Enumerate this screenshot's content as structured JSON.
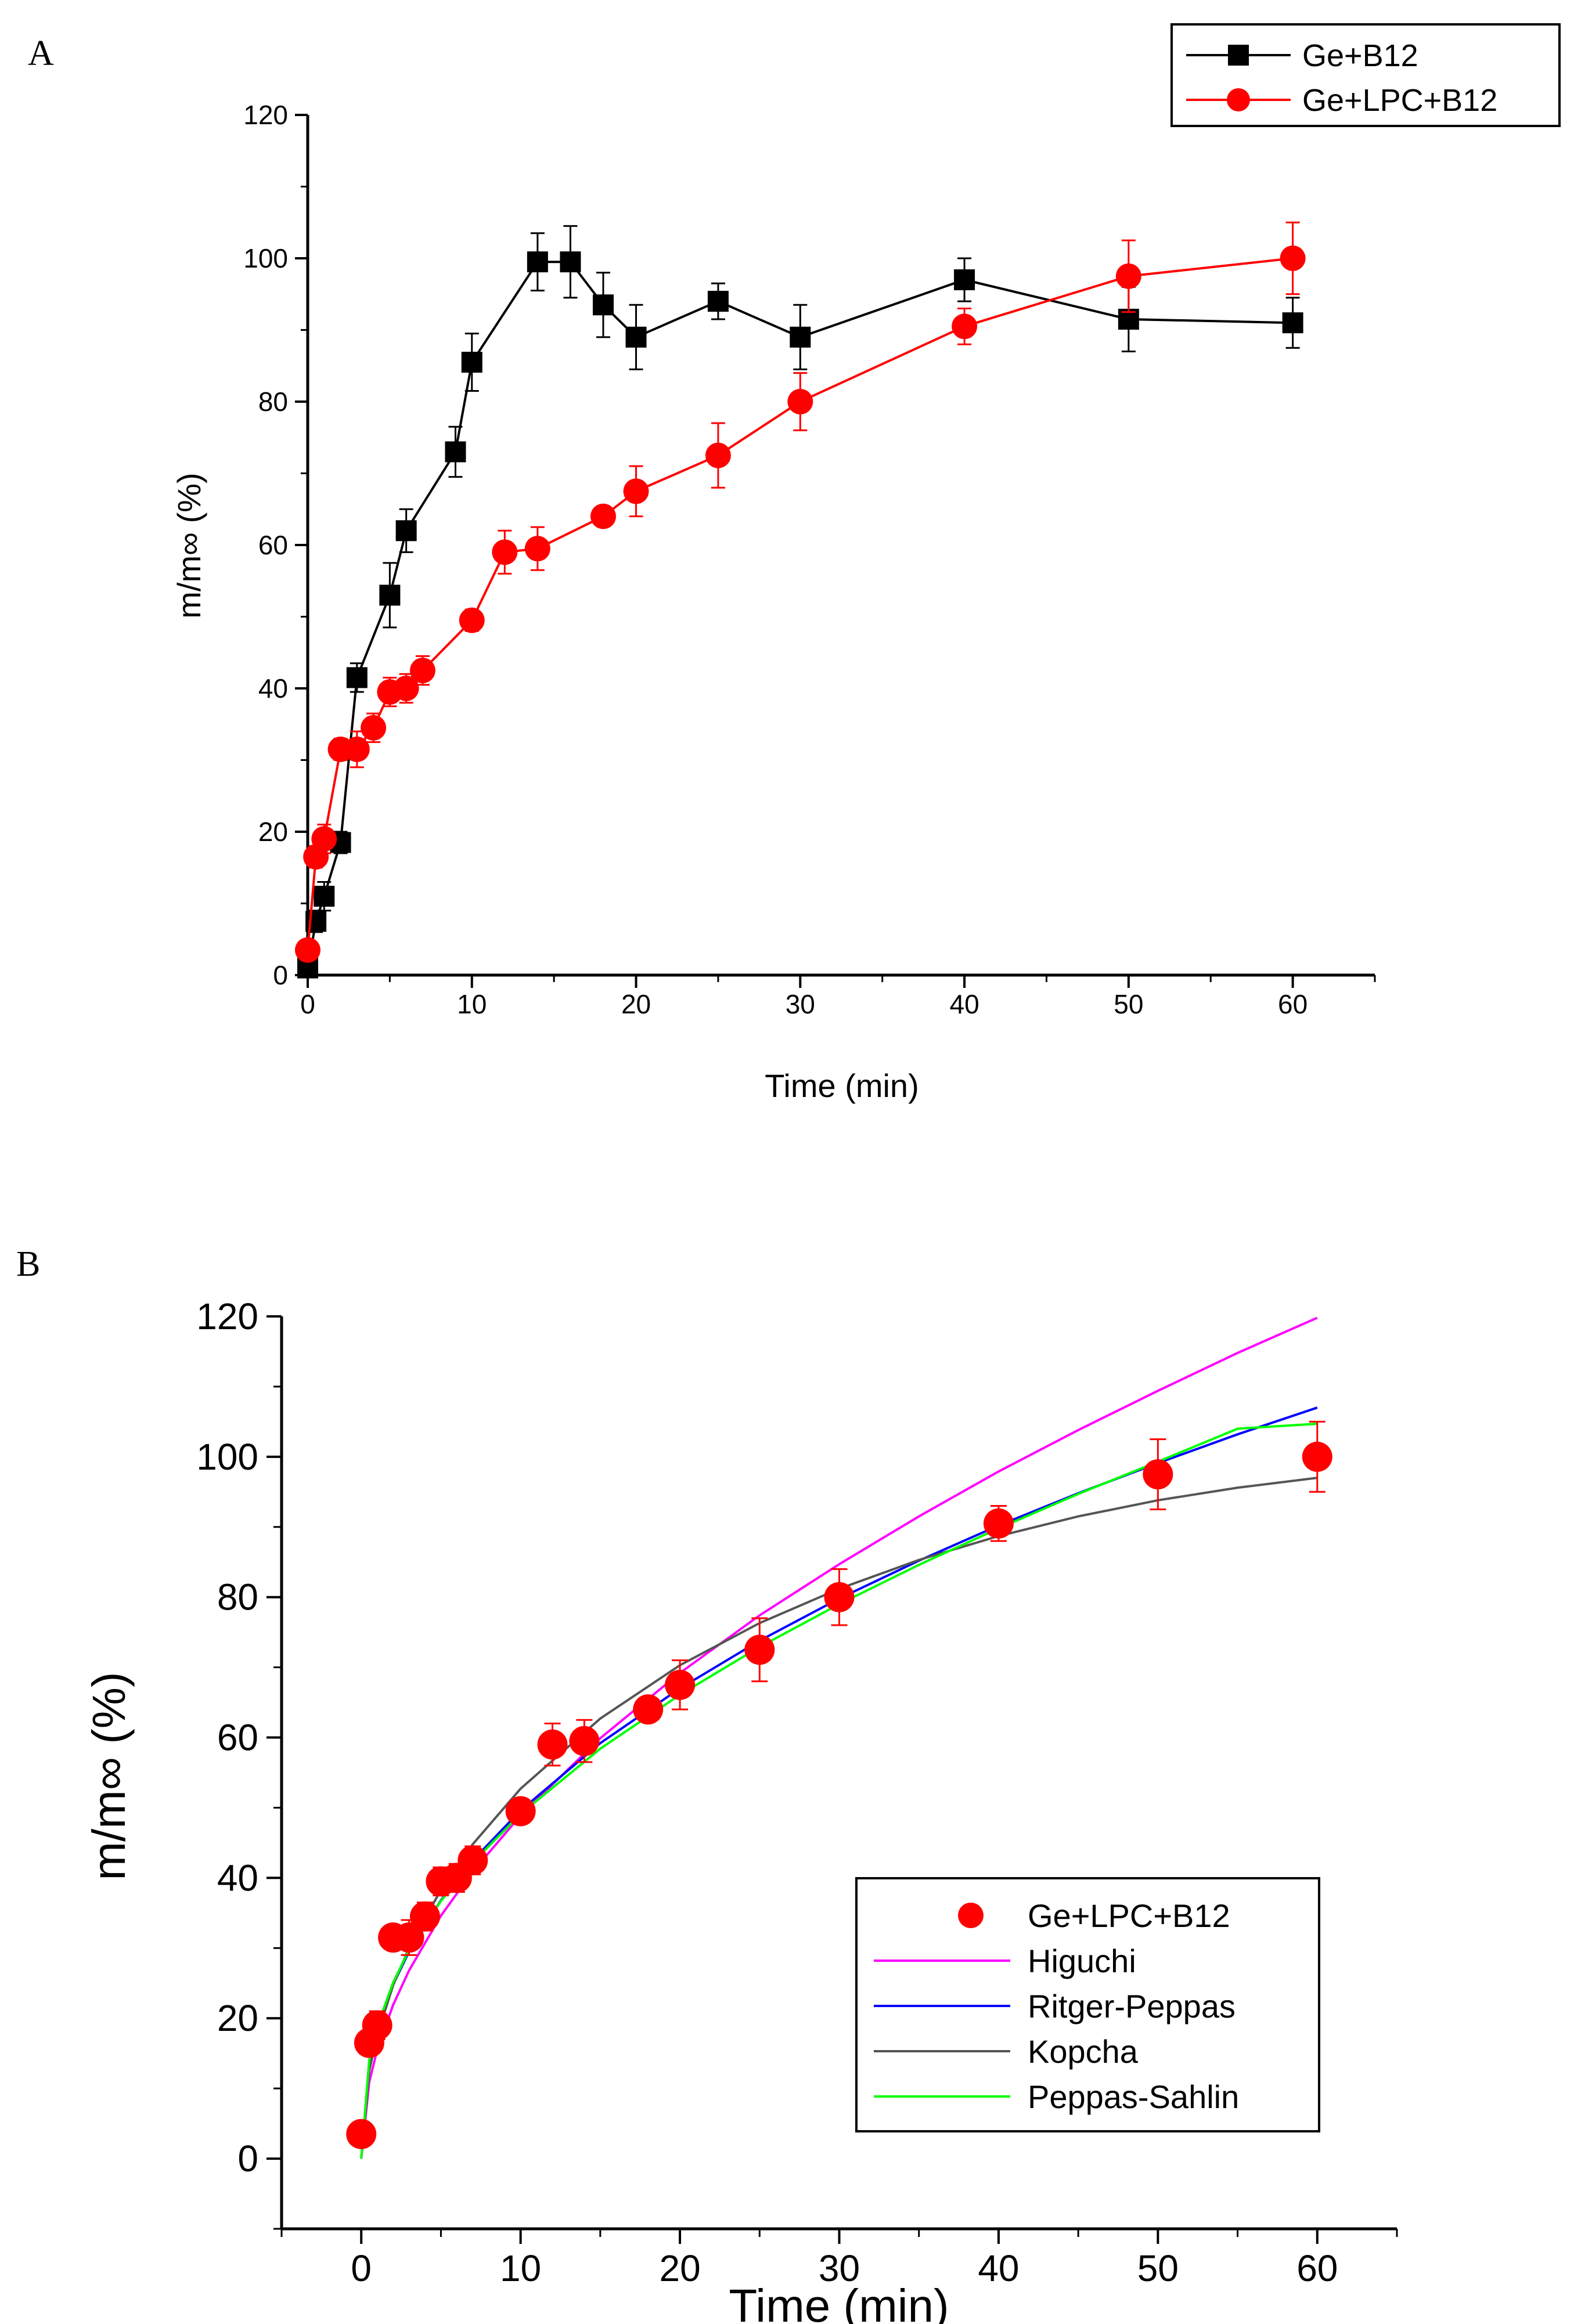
{
  "chart_data": [
    {
      "panel": "A",
      "type": "line",
      "xlabel": "Time (min)",
      "ylabel": "m/m∞ (%)",
      "xlim": [
        0,
        65
      ],
      "ylim": [
        0,
        120
      ],
      "xticks": [
        0,
        10,
        20,
        30,
        40,
        50,
        60
      ],
      "yticks": [
        0,
        20,
        40,
        60,
        80,
        100,
        120
      ],
      "legend_position": "top-right",
      "grid": false,
      "series": [
        {
          "name": "Ge+B12",
          "color": "#000000",
          "marker": "square",
          "x": [
            0,
            0.5,
            1,
            2,
            3,
            5,
            6,
            9,
            10,
            14,
            16,
            18,
            20,
            25,
            30,
            40,
            50,
            60
          ],
          "y": [
            1,
            7.5,
            11,
            18.5,
            41.5,
            53,
            62,
            73,
            85.5,
            99.5,
            99.5,
            93.5,
            89,
            94,
            89,
            97,
            91.5,
            91
          ],
          "err": [
            0.5,
            1.5,
            2,
            1.5,
            2,
            4.5,
            3,
            3.5,
            4,
            4,
            5,
            4.5,
            4.5,
            2.5,
            4.5,
            3,
            4.5,
            3.5
          ]
        },
        {
          "name": "Ge+LPC+B12",
          "color": "#ff0000",
          "marker": "circle",
          "x": [
            0,
            0.5,
            1,
            2,
            3,
            4,
            5,
            6,
            7,
            10,
            12,
            14,
            18,
            20,
            25,
            30,
            40,
            50,
            60
          ],
          "y": [
            3.5,
            16.5,
            19,
            31.5,
            31.5,
            34.5,
            39.5,
            40,
            42.5,
            49.5,
            59,
            59.5,
            64,
            67.5,
            72.5,
            80,
            90.5,
            97.5,
            100
          ],
          "err": [
            1,
            1.5,
            2,
            1.5,
            2.5,
            2,
            2,
            2,
            2,
            1.5,
            3,
            3,
            1,
            3.5,
            4.5,
            4,
            2.5,
            5,
            5
          ]
        }
      ]
    },
    {
      "panel": "B",
      "type": "scatter",
      "xlabel": "Time (min)",
      "ylabel": "m/m∞ (%)",
      "xlim": [
        -5,
        65
      ],
      "ylim": [
        -10,
        120
      ],
      "xticks": [
        0,
        10,
        20,
        30,
        40,
        50,
        60
      ],
      "yticks": [
        0,
        20,
        40,
        60,
        80,
        100,
        120
      ],
      "legend_position": "bottom-right",
      "grid": false,
      "series": [
        {
          "name": "Ge+LPC+B12",
          "color": "#ff0000",
          "marker": "circle",
          "x": [
            0,
            0.5,
            1,
            2,
            3,
            4,
            5,
            6,
            7,
            10,
            12,
            14,
            18,
            20,
            25,
            30,
            40,
            50,
            60
          ],
          "y": [
            3.5,
            16.5,
            19,
            31.5,
            31.5,
            34.5,
            39.5,
            40,
            42.5,
            49.5,
            59,
            59.5,
            64,
            67.5,
            72.5,
            80,
            90.5,
            97.5,
            100
          ],
          "err": [
            1,
            1.5,
            2,
            1.5,
            2.5,
            2,
            2,
            2,
            2,
            1.5,
            3,
            3,
            1,
            3.5,
            4.5,
            4,
            2.5,
            5,
            5
          ]
        }
      ],
      "fits": [
        {
          "name": "Higuchi",
          "color": "#ff00ff",
          "x": [
            0,
            0.5,
            1,
            2,
            3,
            5,
            7,
            10,
            15,
            20,
            25,
            30,
            35,
            40,
            45,
            50,
            55,
            60
          ],
          "y": [
            0,
            10.9,
            15.5,
            21.9,
            26.8,
            34.6,
            40.9,
            48.9,
            59.9,
            69.2,
            77.4,
            84.7,
            91.5,
            97.9,
            103.8,
            109.4,
            114.8,
            119.8
          ]
        },
        {
          "name": "Ritger-Peppas",
          "color": "#0000ff",
          "x": [
            0,
            0.5,
            1,
            2,
            3,
            5,
            7,
            10,
            15,
            20,
            25,
            30,
            35,
            40,
            45,
            50,
            55,
            60
          ],
          "y": [
            0,
            13.6,
            18.4,
            24.8,
            29.5,
            36.8,
            42.5,
            49.6,
            59.2,
            67,
            73.8,
            79.8,
            85.2,
            90.2,
            94.8,
            99.1,
            103.2,
            107
          ]
        },
        {
          "name": "Kopcha",
          "color": "#555555",
          "x": [
            0,
            0.5,
            1,
            2,
            3,
            5,
            7,
            10,
            15,
            20,
            25,
            30,
            35,
            40,
            45,
            50,
            55,
            60
          ],
          "y": [
            0,
            12.5,
            17.6,
            24.7,
            30,
            38.3,
            44.8,
            52.7,
            62.7,
            70.3,
            76.3,
            81.2,
            85.3,
            88.7,
            91.5,
            93.8,
            95.6,
            97
          ]
        },
        {
          "name": "Peppas-Sahlin",
          "color": "#00ff00",
          "x": [
            0,
            0.5,
            1,
            2,
            3,
            5,
            7,
            10,
            15,
            20,
            25,
            30,
            35,
            40,
            45,
            50,
            55,
            60
          ],
          "y": [
            0,
            14,
            18.8,
            25.1,
            29.7,
            36.7,
            42.2,
            49.1,
            58.4,
            66.1,
            72.9,
            79,
            84.6,
            89.8,
            94.7,
            99.3,
            104,
            104.7
          ]
        }
      ]
    }
  ]
}
